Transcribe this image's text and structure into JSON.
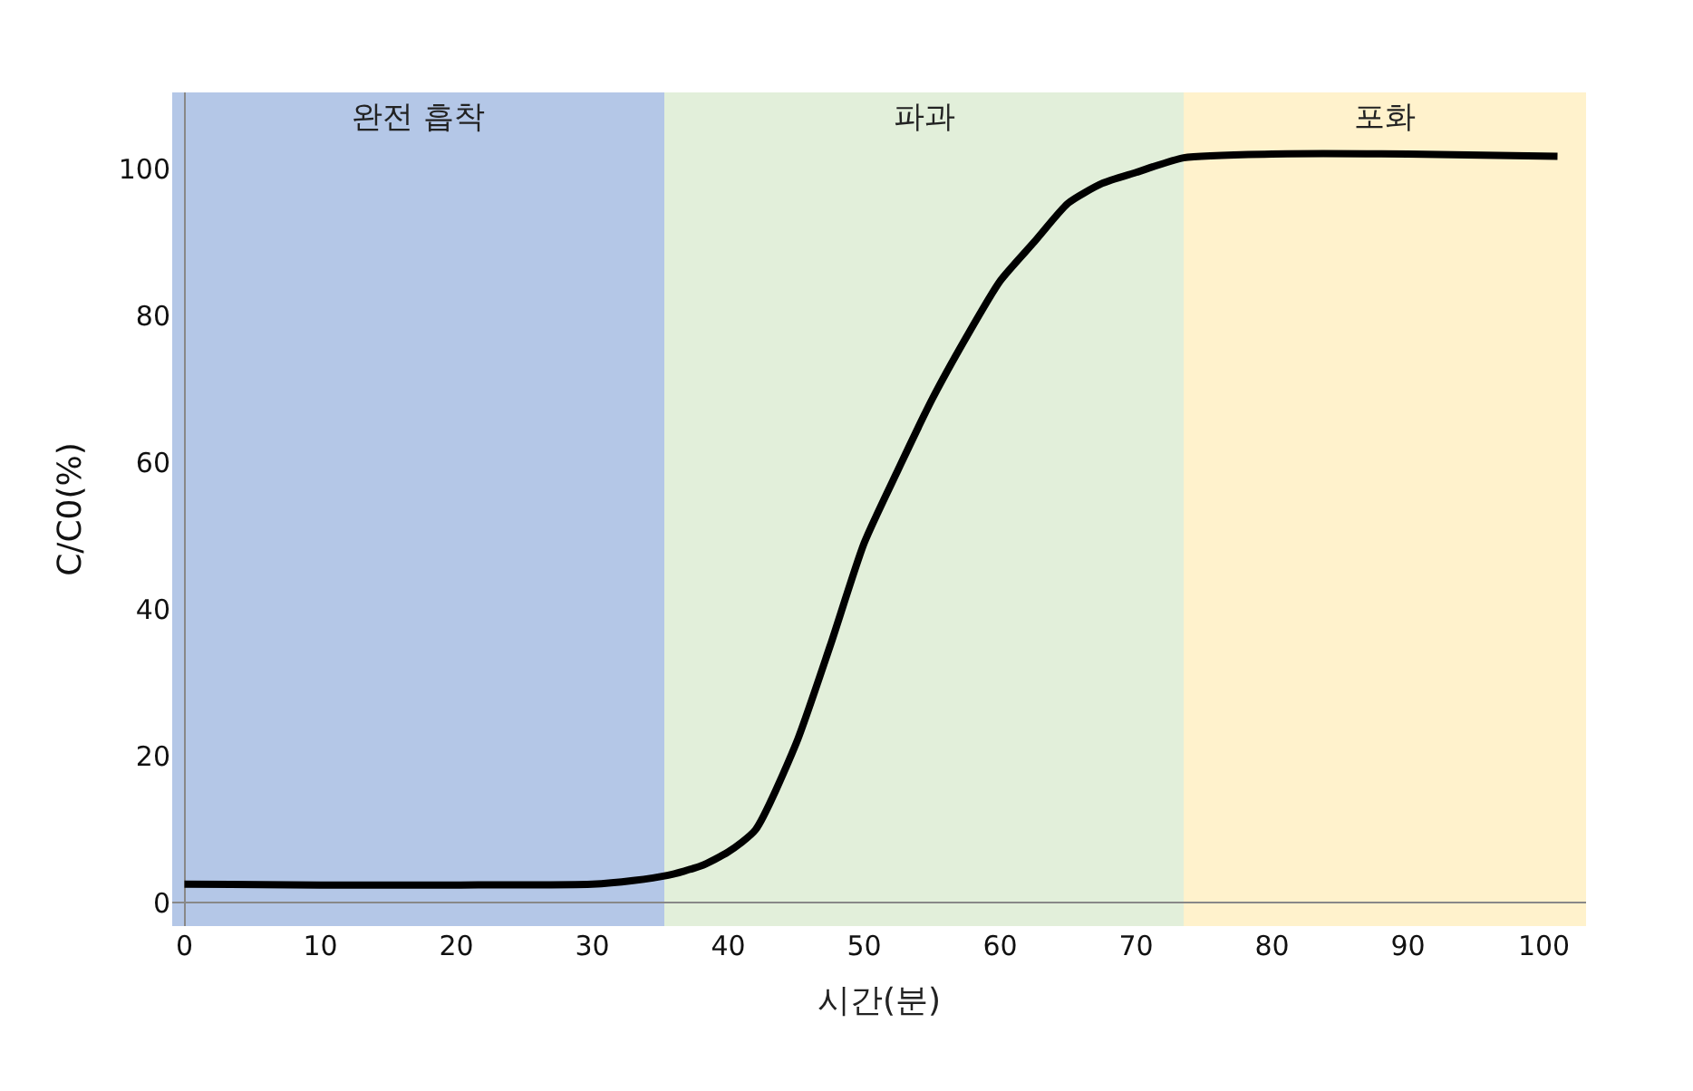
{
  "chart_data": {
    "type": "line",
    "xlabel": "시간(분)",
    "ylabel": "C/C0(%)",
    "x": [
      0,
      10,
      20,
      30,
      33,
      35.5,
      38,
      40,
      42,
      45,
      47.5,
      50,
      52.5,
      55,
      57.5,
      60,
      62.5,
      65,
      67.5,
      70,
      73.5,
      80,
      90,
      101
    ],
    "series": [
      {
        "color": "#000000",
        "values": [
          2.5,
          2.4,
          2.4,
          2.5,
          3,
          3.7,
          5,
          6.9,
          9.9,
          21.7,
          35,
          49,
          59,
          68.6,
          77,
          84.7,
          90,
          95.3,
          98,
          99.5,
          101.5,
          102,
          102,
          101.7
        ]
      }
    ],
    "xlim": [
      -0.9,
      103.1
    ],
    "ylim": [
      -3.2,
      110.4
    ],
    "xticks": [
      0,
      10,
      20,
      30,
      40,
      50,
      60,
      70,
      80,
      90,
      100
    ],
    "yticks": [
      0,
      20,
      40,
      60,
      80,
      100
    ],
    "bands": [
      {
        "axis": "x",
        "from": -0.9,
        "to": 35.3,
        "label": "완전 흡착",
        "color": "#b4c7e7"
      },
      {
        "axis": "x",
        "from": 35.3,
        "to": 73.5,
        "label": "파과",
        "color": "#e2efda"
      },
      {
        "axis": "x",
        "from": 73.5,
        "to": 103.1,
        "label": "포화",
        "color": "#fff2cc"
      }
    ],
    "grid": false,
    "legend": false,
    "marker": "none",
    "line_style": "solid"
  }
}
